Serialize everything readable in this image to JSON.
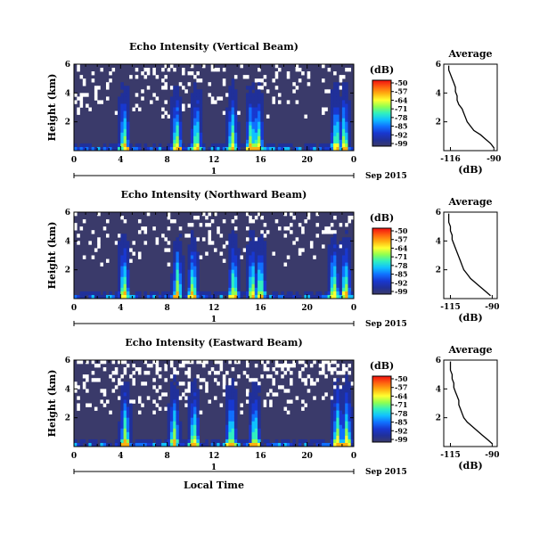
{
  "figure": {
    "xlabel": "Local Time",
    "date_label": "Sep 2015",
    "colorbar_unit": "(dB)",
    "colorbar_ticks": [
      "-50",
      "-57",
      "-64",
      "-71",
      "-78",
      "-85",
      "-92",
      "-99"
    ],
    "colormap": [
      "#f01010",
      "#ff6010",
      "#ffb010",
      "#ffff30",
      "#90ff50",
      "#30f0c0",
      "#10c0ff",
      "#1070ff",
      "#1838d0",
      "#20309a",
      "#3a3a6a"
    ],
    "no_data_color": "#ffffff",
    "background_color": "#3a3a6a"
  },
  "chart_data": [
    {
      "type": "heatmap",
      "title": "Echo Intensity (Vertical Beam)",
      "ylabel": "Height (km)",
      "x_ticks": [
        "0",
        "4",
        "8",
        "12",
        "16",
        "20",
        "0"
      ],
      "x_range": [
        0,
        24
      ],
      "y_ticks": [
        "6",
        "4",
        "2"
      ],
      "y_range": [
        0,
        6
      ],
      "day_marker": "1",
      "z_range": [
        -99,
        -50
      ],
      "z_unit": "dB",
      "gap_fraction": 0.12,
      "enhanced_columns_hours": [
        4.3,
        8.8,
        10.5,
        13.6,
        15.2,
        15.8,
        22.5,
        23.2
      ],
      "average_profile": {
        "title": "Average",
        "xlabel": "(dB)",
        "x_ticks": [
          "-116",
          "-90"
        ],
        "x_range": [
          -120,
          -88
        ],
        "y_ticks": [
          "6",
          "4",
          "2"
        ],
        "y_range": [
          0,
          6
        ],
        "heights": [
          0.2,
          0.5,
          0.8,
          1.1,
          1.4,
          1.7,
          2.0,
          2.3,
          2.6,
          2.9,
          3.2,
          3.5,
          3.8,
          4.1,
          4.4,
          4.7,
          5.0,
          5.3,
          5.6,
          5.9
        ],
        "values": [
          -90,
          -92,
          -95,
          -98,
          -102,
          -104,
          -106,
          -107,
          -108,
          -109,
          -111,
          -112,
          -112,
          -113,
          -113,
          -114,
          -115,
          -116,
          -117,
          -117
        ]
      }
    },
    {
      "type": "heatmap",
      "title": "Echo Intensity (Northward Beam)",
      "ylabel": "Height (km)",
      "x_ticks": [
        "0",
        "4",
        "8",
        "12",
        "16",
        "20",
        "0"
      ],
      "x_range": [
        0,
        24
      ],
      "y_ticks": [
        "6",
        "4",
        "2"
      ],
      "y_range": [
        0,
        6
      ],
      "day_marker": "1",
      "z_range": [
        -99,
        -50
      ],
      "z_unit": "dB",
      "gap_fraction": 0.1,
      "enhanced_columns_hours": [
        4.3,
        8.9,
        10.2,
        13.7,
        15.3,
        16.0,
        22.3,
        23.3
      ],
      "average_profile": {
        "title": "Average",
        "xlabel": "(dB)",
        "x_ticks": [
          "-115",
          "-90"
        ],
        "x_range": [
          -119,
          -87
        ],
        "y_ticks": [
          "6",
          "4",
          "2"
        ],
        "y_range": [
          0,
          6
        ],
        "heights": [
          0.2,
          0.5,
          0.8,
          1.1,
          1.4,
          1.7,
          2.0,
          2.3,
          2.6,
          2.9,
          3.2,
          3.5,
          3.8,
          4.1,
          4.4,
          4.7,
          5.0,
          5.3,
          5.6,
          5.9
        ],
        "values": [
          -91,
          -94,
          -97,
          -100,
          -103,
          -105,
          -107,
          -108,
          -109,
          -110,
          -111,
          -112,
          -113,
          -114,
          -114,
          -115,
          -115,
          -116,
          -116,
          -116
        ]
      }
    },
    {
      "type": "heatmap",
      "title": "Echo Intensity (Eastward Beam)",
      "ylabel": "Height (km)",
      "x_ticks": [
        "0",
        "4",
        "8",
        "12",
        "16",
        "20",
        "0"
      ],
      "x_range": [
        0,
        24
      ],
      "y_ticks": [
        "6",
        "4",
        "2"
      ],
      "y_range": [
        0,
        6
      ],
      "day_marker": "1",
      "z_range": [
        -99,
        -50
      ],
      "z_unit": "dB",
      "gap_fraction": 0.2,
      "enhanced_columns_hours": [
        4.4,
        8.6,
        10.3,
        13.5,
        15.5,
        22.6,
        23.4
      ],
      "average_profile": {
        "title": "Average",
        "xlabel": "(dB)",
        "x_ticks": [
          "-115",
          "-90"
        ],
        "x_range": [
          -119,
          -87
        ],
        "y_ticks": [
          "6",
          "4",
          "2"
        ],
        "y_range": [
          0,
          6
        ],
        "heights": [
          0.2,
          0.5,
          0.8,
          1.1,
          1.4,
          1.7,
          2.0,
          2.3,
          2.6,
          2.9,
          3.2,
          3.5,
          3.8,
          4.1,
          4.4,
          4.7,
          5.0,
          5.3,
          5.6,
          5.9
        ],
        "values": [
          -90,
          -93,
          -96,
          -99,
          -102,
          -105,
          -107,
          -108,
          -109,
          -110,
          -110,
          -111,
          -112,
          -113,
          -113,
          -114,
          -114,
          -115,
          -115,
          -115
        ]
      }
    }
  ]
}
